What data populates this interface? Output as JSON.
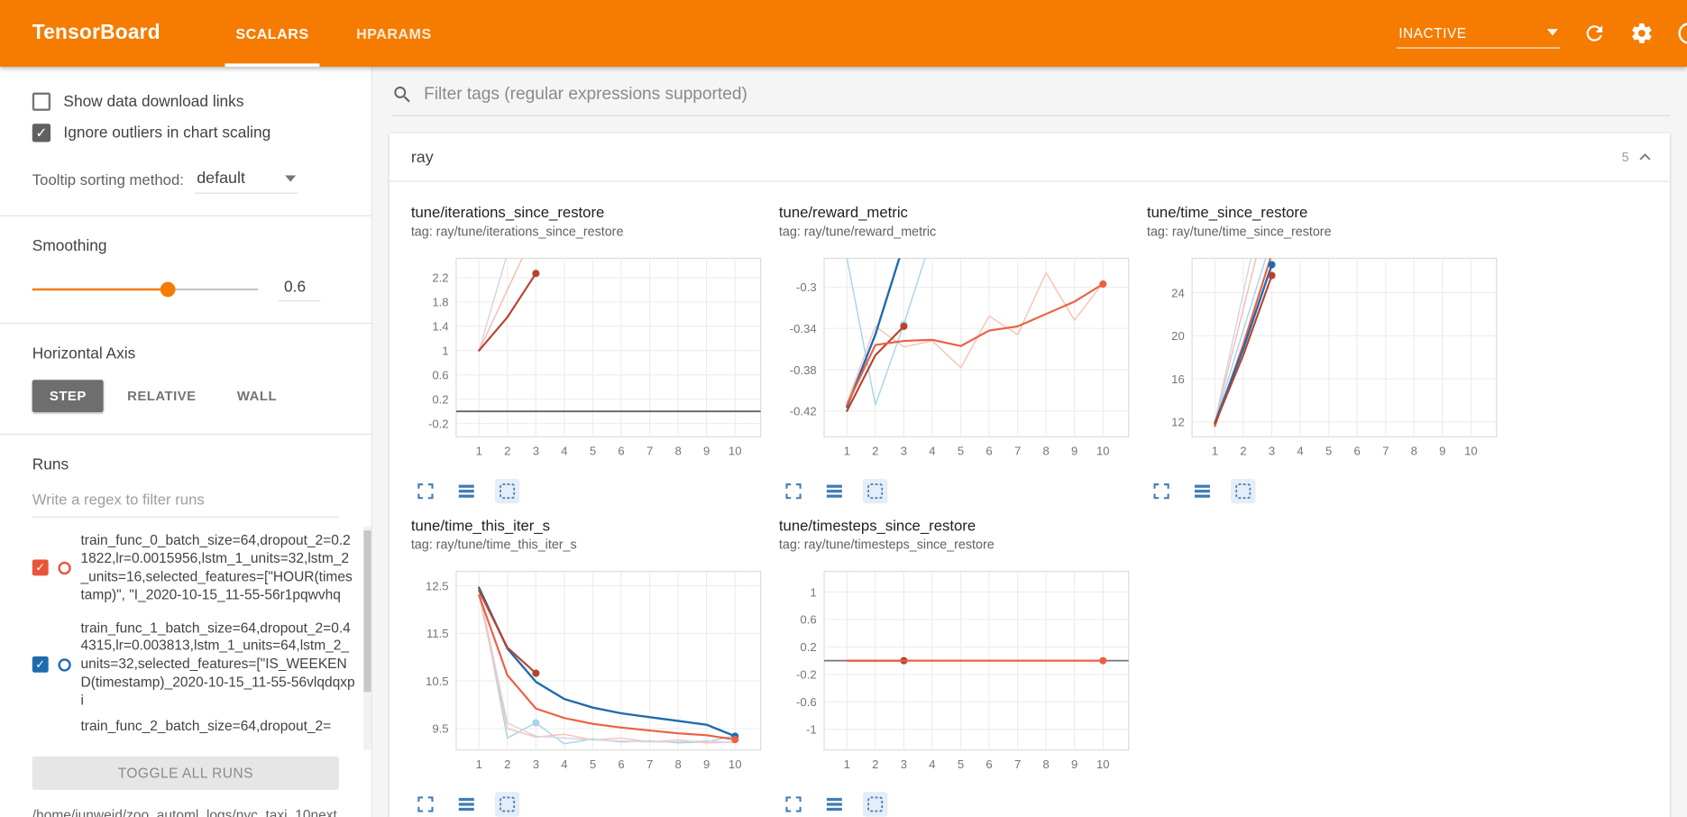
{
  "header": {
    "title": "TensorBoard",
    "tabs": [
      {
        "label": "SCALARS",
        "active": true
      },
      {
        "label": "HPARAMS",
        "active": false
      }
    ],
    "status_dropdown": "INACTIVE",
    "icons": [
      "refresh-icon",
      "settings-gear-icon",
      "help-icon"
    ],
    "accent_color": "#f57c00"
  },
  "sidebar": {
    "show_download": {
      "label": "Show data download links",
      "checked": false
    },
    "ignore_outliers": {
      "label": "Ignore outliers in chart scaling",
      "checked": true
    },
    "tooltip_sort": {
      "label": "Tooltip sorting method:",
      "value": "default"
    },
    "smoothing": {
      "label": "Smoothing",
      "value": "0.6",
      "percent": 60
    },
    "horizontal_axis": {
      "label": "Horizontal Axis",
      "options": [
        "STEP",
        "RELATIVE",
        "WALL"
      ],
      "selected": "STEP"
    },
    "runs": {
      "label": "Runs",
      "filter_placeholder": "Write a regex to filter runs",
      "items": [
        {
          "name": "train_func_0_batch_size=64,dropout_2=0.21822,lr=0.0015956,lstm_1_units=32,lstm_2_units=16,selected_features=[\"HOUR(timestamp)\", \"I_2020-10-15_11-55-56r1pqwvhq",
          "color": "#e8553a",
          "checked": true,
          "partial": false
        },
        {
          "name": "train_func_1_batch_size=64,dropout_2=0.44315,lr=0.003813,lstm_1_units=64,lstm_2_units=32,selected_features=[\"IS_WEEKEND(timestamp)_2020-10-15_11-55-56vlqdqxpi",
          "color": "#1f6bb0",
          "checked": true,
          "partial": false
        },
        {
          "name": "train_func_2_batch_size=64,dropout_2=",
          "color": "#9e9e9e",
          "checked": true,
          "partial": true
        }
      ],
      "toggle_all_label": "TOGGLE ALL RUNS",
      "log_path": "/home/junweid/zoo_automl_logs/nyc_taxi_10next"
    }
  },
  "main": {
    "filter_placeholder": "Filter tags (regular expressions supported)",
    "group": {
      "title": "ray",
      "count": "5"
    }
  },
  "chart_data": [
    {
      "type": "line",
      "title": "tune/iterations_since_restore",
      "tag": "tag: ray/tune/iterations_since_restore",
      "xlim": [
        0.2,
        10.9
      ],
      "ylim": [
        -0.42,
        2.52
      ],
      "x_ticks": [
        1,
        2,
        3,
        4,
        5,
        6,
        7,
        8,
        9,
        10
      ],
      "y_ticks": [
        -0.2,
        0.2,
        0.6,
        1,
        1.4,
        1.8,
        2.2
      ],
      "y_tick_labels": [
        "-0.2",
        "0.2",
        "0.6",
        "1",
        "1.4",
        "1.8",
        "2.2"
      ],
      "series": [
        {
          "name": "train_func_1 (raw)",
          "color": "#d5d4e2",
          "width": 1.2,
          "values": [
            [
              1,
              1
            ],
            [
              2,
              2.6
            ],
            [
              3,
              4.2
            ]
          ]
        },
        {
          "name": "train_func_0 (raw)",
          "color": "#f4bdae",
          "width": 1.2,
          "values": [
            [
              1,
              1
            ],
            [
              2,
              2
            ],
            [
              3,
              3
            ]
          ]
        },
        {
          "name": "baseline-zero",
          "color": "#5f6368",
          "width": 1.5,
          "values": [
            [
              0.2,
              0
            ],
            [
              10.9,
              0
            ]
          ]
        },
        {
          "name": "train_func_0 (smoothed)",
          "color": "#b8432c",
          "width": 1.8,
          "values": [
            [
              1,
              1
            ],
            [
              2,
              1.55
            ],
            [
              3,
              2.27
            ]
          ],
          "dots": [
            [
              3,
              2.27
            ]
          ]
        }
      ]
    },
    {
      "type": "line",
      "title": "tune/reward_metric",
      "tag": "tag: ray/tune/reward_metric",
      "xlim": [
        0.2,
        10.9
      ],
      "ylim": [
        -0.445,
        -0.272
      ],
      "x_ticks": [
        1,
        2,
        3,
        4,
        5,
        6,
        7,
        8,
        9,
        10
      ],
      "y_ticks": [
        -0.42,
        -0.38,
        -0.34,
        -0.3
      ],
      "y_tick_labels": [
        "-0.42",
        "-0.38",
        "-0.34",
        "-0.3"
      ],
      "series": [
        {
          "name": "train_func_2 (raw)",
          "color": "#f6c3b4",
          "width": 1.2,
          "values": [
            [
              1,
              -0.412
            ],
            [
              2,
              -0.338
            ],
            [
              3,
              -0.358
            ],
            [
              4,
              -0.352
            ],
            [
              5,
              -0.378
            ],
            [
              6,
              -0.328
            ],
            [
              7,
              -0.346
            ],
            [
              8,
              -0.286
            ],
            [
              9,
              -0.332
            ],
            [
              10,
              -0.296
            ]
          ]
        },
        {
          "name": "train_func_1 (raw)",
          "color": "#a6d4ee",
          "width": 1.2,
          "values": [
            [
              1,
              -0.272
            ],
            [
              2,
              -0.414
            ],
            [
              3,
              -0.336
            ],
            [
              4,
              -0.25
            ]
          ],
          "dots": [
            [
              3,
              -0.336
            ]
          ]
        },
        {
          "name": "train_func_1 (smoothed)",
          "color": "#1f6bb0",
          "width": 2,
          "values": [
            [
              1,
              -0.416
            ],
            [
              2,
              -0.346
            ],
            [
              3,
              -0.258
            ]
          ]
        },
        {
          "name": "train_func_0 (smoothed)",
          "color": "#b8432c",
          "width": 1.8,
          "values": [
            [
              1,
              -0.42
            ],
            [
              2,
              -0.366
            ],
            [
              3,
              -0.338
            ]
          ],
          "dots": [
            [
              3,
              -0.338
            ]
          ]
        },
        {
          "name": "train_func_2 (smoothed)",
          "color": "#ed5f40",
          "width": 1.8,
          "values": [
            [
              1,
              -0.414
            ],
            [
              2,
              -0.356
            ],
            [
              3,
              -0.352
            ],
            [
              4,
              -0.351
            ],
            [
              5,
              -0.357
            ],
            [
              6,
              -0.342
            ],
            [
              7,
              -0.338
            ],
            [
              8,
              -0.326
            ],
            [
              9,
              -0.314
            ],
            [
              10,
              -0.297
            ]
          ],
          "dots": [
            [
              10,
              -0.297
            ]
          ]
        }
      ]
    },
    {
      "type": "line",
      "title": "tune/time_since_restore",
      "tag": "tag: ray/tune/time_since_restore",
      "xlim": [
        0.2,
        10.9
      ],
      "ylim": [
        10.6,
        27.2
      ],
      "x_ticks": [
        1,
        2,
        3,
        4,
        5,
        6,
        7,
        8,
        9,
        10
      ],
      "y_ticks": [
        12,
        16,
        20,
        24
      ],
      "y_tick_labels": [
        "12",
        "16",
        "20",
        "24"
      ],
      "series": [
        {
          "name": "train_func_1 (raw)",
          "color": "#d5d4e2",
          "width": 1.2,
          "values": [
            [
              1,
              12
            ],
            [
              2,
              24
            ],
            [
              3,
              36
            ]
          ]
        },
        {
          "name": "train_func_0 (raw)",
          "color": "#f4bdae",
          "width": 1.2,
          "values": [
            [
              1,
              12
            ],
            [
              2,
              22.5
            ],
            [
              3,
              33
            ]
          ]
        },
        {
          "name": "train_func_2 (raw)",
          "color": "#a6d4ee",
          "width": 1.2,
          "values": [
            [
              1,
              12
            ],
            [
              2,
              20.5
            ],
            [
              3,
              29
            ]
          ]
        },
        {
          "name": "train_func_2 (smoothed)",
          "color": "#ed5f40",
          "width": 1.8,
          "values": [
            [
              1,
              11.6
            ],
            [
              2,
              19.2
            ],
            [
              3,
              27.6
            ]
          ]
        },
        {
          "name": "train_func_1 (smoothed)",
          "color": "#1f6bb0",
          "width": 2,
          "values": [
            [
              1,
              11.9
            ],
            [
              2,
              18.8
            ],
            [
              3,
              26.6
            ]
          ],
          "dots": [
            [
              3,
              26.6
            ]
          ]
        },
        {
          "name": "train_func_0 (smoothed)",
          "color": "#b8432c",
          "width": 1.8,
          "values": [
            [
              1,
              11.8
            ],
            [
              2,
              18.2
            ],
            [
              3,
              25.6
            ]
          ],
          "dots": [
            [
              3,
              25.6
            ]
          ]
        }
      ]
    },
    {
      "type": "line",
      "title": "tune/time_this_iter_s",
      "tag": "tag: ray/tune/time_this_iter_s",
      "xlim": [
        0.2,
        10.9
      ],
      "ylim": [
        9.05,
        12.8
      ],
      "x_ticks": [
        1,
        2,
        3,
        4,
        5,
        6,
        7,
        8,
        9,
        10
      ],
      "y_ticks": [
        9.5,
        10.5,
        11.5,
        12.5
      ],
      "y_tick_labels": [
        "9.5",
        "10.5",
        "11.5",
        "12.5"
      ],
      "series": [
        {
          "name": "train_func_1 (raw)",
          "color": "#a6d4ee",
          "width": 1.2,
          "values": [
            [
              1,
              12.45
            ],
            [
              2,
              9.3
            ],
            [
              3,
              9.62
            ],
            [
              4,
              9.18
            ],
            [
              5,
              9.28
            ],
            [
              6,
              9.22
            ],
            [
              7,
              9.24
            ],
            [
              8,
              9.2
            ],
            [
              9,
              9.22
            ],
            [
              10,
              9.35
            ]
          ],
          "dots": [
            [
              3,
              9.62
            ]
          ]
        },
        {
          "name": "train_func_2 (raw)",
          "color": "#f6c3b4",
          "width": 1.2,
          "values": [
            [
              1,
              12.3
            ],
            [
              2,
              9.5
            ],
            [
              3,
              9.32
            ],
            [
              4,
              9.38
            ],
            [
              5,
              9.26
            ],
            [
              6,
              9.3
            ],
            [
              7,
              9.22
            ],
            [
              8,
              9.26
            ],
            [
              9,
              9.2
            ],
            [
              10,
              9.22
            ]
          ]
        },
        {
          "name": "train_func_0 (raw)",
          "color": "#d5d4e2",
          "width": 1.2,
          "values": [
            [
              1,
              12.42
            ],
            [
              2,
              9.62
            ],
            [
              3,
              9.34
            ],
            [
              4,
              9.3
            ],
            [
              5,
              9.26
            ],
            [
              6,
              9.24
            ],
            [
              7,
              9.22
            ],
            [
              8,
              9.22
            ],
            [
              9,
              9.24
            ],
            [
              10,
              9.2
            ]
          ]
        },
        {
          "name": "train_func_1 (smoothed)",
          "color": "#1f6bb0",
          "width": 2,
          "values": [
            [
              1,
              12.46
            ],
            [
              2,
              11.18
            ],
            [
              3,
              10.48
            ],
            [
              4,
              10.12
            ],
            [
              5,
              9.94
            ],
            [
              6,
              9.82
            ],
            [
              7,
              9.74
            ],
            [
              8,
              9.66
            ],
            [
              9,
              9.58
            ],
            [
              10,
              9.34
            ]
          ],
          "dots": [
            [
              10,
              9.34
            ]
          ]
        },
        {
          "name": "train_func_0 (smoothed)",
          "color": "#b8432c",
          "width": 1.8,
          "values": [
            [
              1,
              12.4
            ],
            [
              2,
              11.2
            ],
            [
              3,
              10.66
            ]
          ],
          "dots": [
            [
              3,
              10.66
            ]
          ]
        },
        {
          "name": "train_func_2 (smoothed)",
          "color": "#ed5f40",
          "width": 1.8,
          "values": [
            [
              1,
              12.3
            ],
            [
              2,
              10.62
            ],
            [
              3,
              9.92
            ],
            [
              4,
              9.72
            ],
            [
              5,
              9.6
            ],
            [
              6,
              9.52
            ],
            [
              7,
              9.46
            ],
            [
              8,
              9.4
            ],
            [
              9,
              9.36
            ],
            [
              10,
              9.27
            ]
          ],
          "dots": [
            [
              10,
              9.27
            ]
          ]
        }
      ]
    },
    {
      "type": "line",
      "title": "tune/timesteps_since_restore",
      "tag": "tag: ray/tune/timesteps_since_restore",
      "xlim": [
        0.2,
        10.9
      ],
      "ylim": [
        -1.3,
        1.3
      ],
      "x_ticks": [
        1,
        2,
        3,
        4,
        5,
        6,
        7,
        8,
        9,
        10
      ],
      "y_ticks": [
        -1,
        -0.6,
        -0.2,
        0.2,
        0.6,
        1
      ],
      "y_tick_labels": [
        "-1",
        "-0.6",
        "-0.2",
        "0.2",
        "0.6",
        "1"
      ],
      "series": [
        {
          "name": "baseline-zero",
          "color": "#757575",
          "width": 1.5,
          "values": [
            [
              0.2,
              0
            ],
            [
              10.9,
              0
            ]
          ]
        },
        {
          "name": "train_func_0 (smoothed)",
          "color": "#b8432c",
          "width": 1.8,
          "values": [
            [
              1,
              0
            ],
            [
              2,
              0
            ],
            [
              3,
              0
            ]
          ],
          "dots": [
            [
              3,
              0
            ]
          ]
        },
        {
          "name": "train_func_2 (smoothed)",
          "color": "#ed5f40",
          "width": 1.8,
          "values": [
            [
              1,
              0
            ],
            [
              2,
              0
            ],
            [
              3,
              0
            ],
            [
              4,
              0
            ],
            [
              5,
              0
            ],
            [
              6,
              0
            ],
            [
              7,
              0
            ],
            [
              8,
              0
            ],
            [
              9,
              0
            ],
            [
              10,
              0
            ]
          ],
          "dots": [
            [
              10,
              0
            ]
          ]
        }
      ]
    }
  ]
}
